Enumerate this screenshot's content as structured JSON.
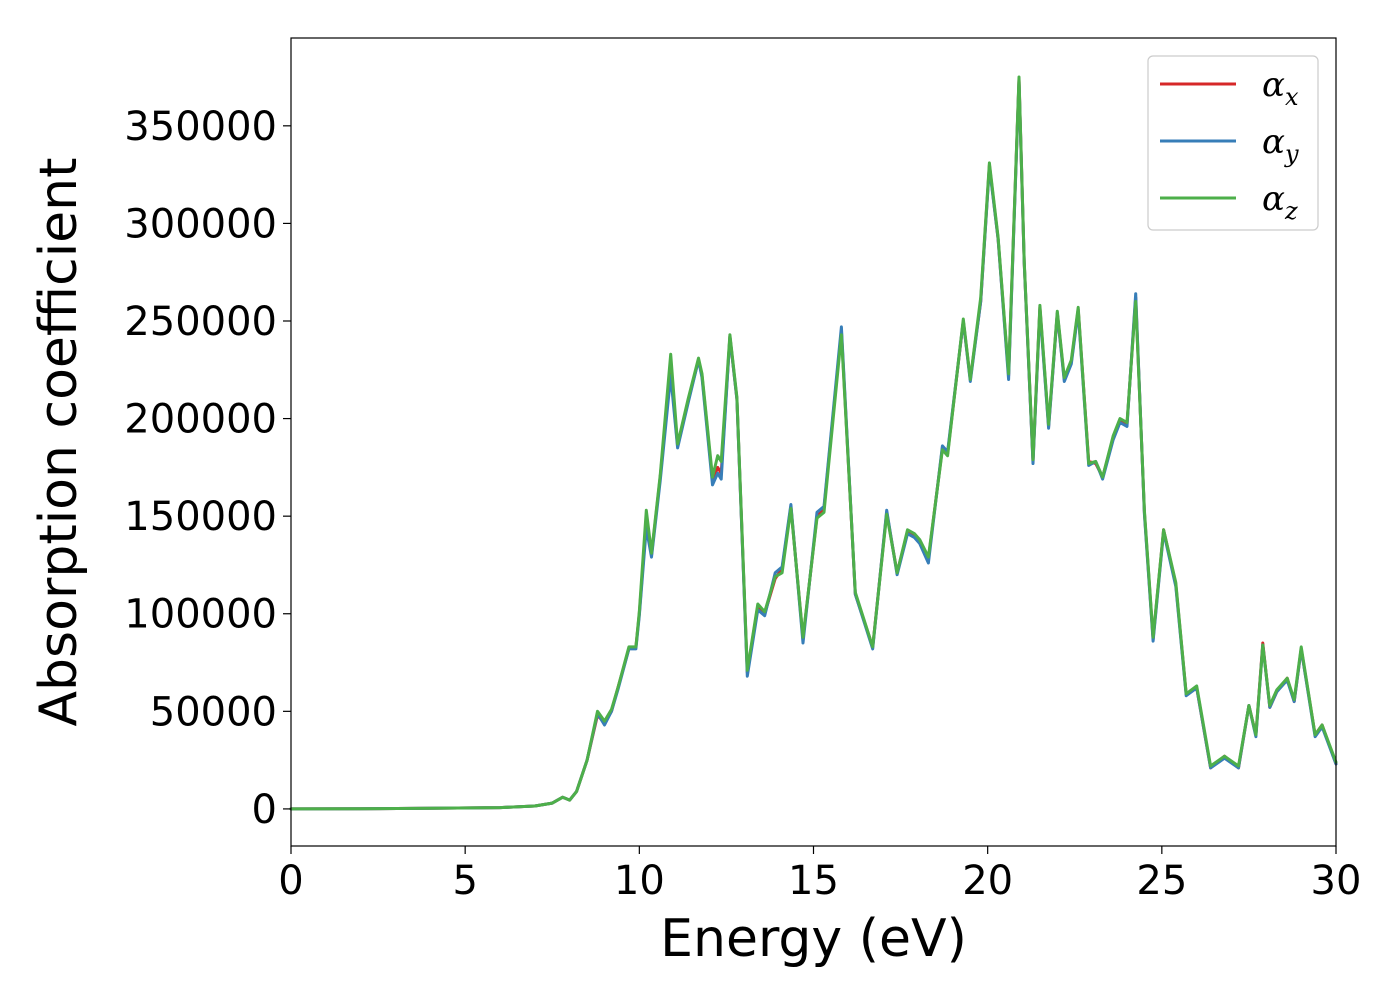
{
  "chart_data": {
    "type": "line",
    "xlabel": "Energy (eV)",
    "ylabel": "Absorption coefficient",
    "xlim": [
      0,
      30
    ],
    "ylim": [
      -19000,
      395000
    ],
    "xticks": [
      0,
      5,
      10,
      15,
      20,
      25,
      30
    ],
    "xtick_labels": [
      "0",
      "5",
      "10",
      "15",
      "20",
      "25",
      "30"
    ],
    "yticks": [
      0,
      50000,
      100000,
      150000,
      200000,
      250000,
      300000,
      350000
    ],
    "ytick_labels": [
      "0",
      "50000",
      "100000",
      "150000",
      "200000",
      "250000",
      "300000",
      "350000"
    ],
    "grid": false,
    "legend_position": "top-right",
    "series": [
      {
        "name": "α",
        "sub": "x",
        "color": "#d62728",
        "x": [
          0,
          2,
          4,
          6,
          7,
          7.5,
          7.8,
          8,
          8.2,
          8.5,
          8.8,
          9,
          9.2,
          9.4,
          9.7,
          9.9,
          10,
          10.2,
          10.35,
          10.6,
          10.9,
          11.1,
          11.4,
          11.7,
          11.8,
          12.1,
          12.25,
          12.35,
          12.6,
          12.8,
          13.1,
          13.4,
          13.6,
          13.9,
          14.1,
          14.35,
          14.7,
          15.1,
          15.3,
          15.8,
          16.2,
          16.7,
          17.1,
          17.4,
          17.7,
          17.9,
          18.05,
          18.3,
          18.7,
          18.85,
          19.3,
          19.5,
          19.8,
          20.05,
          20.3,
          20.6,
          20.9,
          21.05,
          21.3,
          21.5,
          21.75,
          22,
          22.2,
          22.4,
          22.6,
          22.9,
          23.1,
          23.3,
          23.6,
          23.8,
          24,
          24.25,
          24.5,
          24.75,
          25.05,
          25.4,
          25.7,
          26,
          26.4,
          26.8,
          27.2,
          27.5,
          27.7,
          27.9,
          28.1,
          28.3,
          28.6,
          28.8,
          29,
          29.4,
          29.6,
          30
        ],
        "y": [
          0,
          100,
          300,
          700,
          1500,
          3000,
          6000,
          4500,
          9000,
          25000,
          48000,
          44000,
          50000,
          63000,
          82000,
          83000,
          100000,
          147000,
          130000,
          170000,
          225000,
          186000,
          209000,
          230000,
          222000,
          168000,
          175000,
          172000,
          242000,
          210000,
          70000,
          104000,
          100000,
          118000,
          123000,
          155000,
          87000,
          150000,
          154000,
          245000,
          110000,
          83000,
          152000,
          121000,
          142000,
          140000,
          137000,
          128000,
          185000,
          182000,
          250000,
          220000,
          260000,
          330000,
          292000,
          222000,
          374000,
          280000,
          178000,
          257000,
          196000,
          254000,
          220000,
          229000,
          256000,
          178000,
          177000,
          170000,
          190000,
          199000,
          197000,
          262000,
          152000,
          87000,
          143000,
          115000,
          59000,
          62000,
          21000,
          27000,
          21000,
          53000,
          38000,
          85000,
          52000,
          60000,
          67000,
          55000,
          82000,
          38000,
          43000,
          23000
        ]
      },
      {
        "name": "α",
        "sub": "y",
        "color": "#377eb8",
        "x": [
          0,
          2,
          4,
          6,
          7,
          7.5,
          7.8,
          8,
          8.2,
          8.5,
          8.8,
          9,
          9.2,
          9.4,
          9.7,
          9.9,
          10,
          10.2,
          10.35,
          10.6,
          10.9,
          11.1,
          11.4,
          11.7,
          11.8,
          12.1,
          12.25,
          12.35,
          12.6,
          12.8,
          13.1,
          13.4,
          13.6,
          13.9,
          14.1,
          14.35,
          14.7,
          15.1,
          15.3,
          15.8,
          16.2,
          16.7,
          17.1,
          17.4,
          17.7,
          17.9,
          18.05,
          18.3,
          18.7,
          18.85,
          19.3,
          19.5,
          19.8,
          20.05,
          20.3,
          20.6,
          20.9,
          21.05,
          21.3,
          21.5,
          21.75,
          22,
          22.2,
          22.4,
          22.6,
          22.9,
          23.1,
          23.3,
          23.6,
          23.8,
          24,
          24.25,
          24.5,
          24.75,
          25.05,
          25.4,
          25.7,
          26,
          26.4,
          26.8,
          27.2,
          27.5,
          27.7,
          27.9,
          28.1,
          28.3,
          28.6,
          28.8,
          29,
          29.4,
          29.6,
          30
        ],
        "y": [
          0,
          100,
          300,
          700,
          1500,
          3000,
          6000,
          4500,
          9000,
          25000,
          49000,
          43000,
          50000,
          62000,
          82000,
          82000,
          99000,
          144000,
          129000,
          168000,
          222000,
          185000,
          208000,
          230000,
          221000,
          166000,
          172000,
          169000,
          242000,
          210000,
          68000,
          102000,
          99000,
          121000,
          124000,
          156000,
          85000,
          152000,
          155000,
          247000,
          110000,
          82000,
          153000,
          120000,
          141000,
          139000,
          136000,
          126000,
          186000,
          183000,
          250000,
          219000,
          260000,
          329000,
          292000,
          220000,
          373000,
          280000,
          177000,
          256000,
          195000,
          254000,
          219000,
          228000,
          255000,
          176000,
          178000,
          169000,
          189000,
          198000,
          196000,
          264000,
          151000,
          86000,
          142000,
          114000,
          58000,
          62000,
          21000,
          26000,
          21000,
          53000,
          37000,
          84000,
          52000,
          60000,
          66000,
          55000,
          82000,
          37000,
          42000,
          23000
        ]
      },
      {
        "name": "α",
        "sub": "z",
        "color": "#4daf4a",
        "x": [
          0,
          2,
          4,
          6,
          7,
          7.5,
          7.8,
          8,
          8.2,
          8.5,
          8.8,
          9,
          9.2,
          9.4,
          9.7,
          9.9,
          10,
          10.2,
          10.35,
          10.6,
          10.9,
          11.1,
          11.4,
          11.7,
          11.8,
          12.1,
          12.25,
          12.35,
          12.6,
          12.8,
          13.1,
          13.4,
          13.6,
          13.9,
          14.1,
          14.35,
          14.7,
          15.1,
          15.3,
          15.8,
          16.2,
          16.7,
          17.1,
          17.4,
          17.7,
          17.9,
          18.05,
          18.3,
          18.7,
          18.85,
          19.3,
          19.5,
          19.8,
          20.05,
          20.3,
          20.6,
          20.9,
          21.05,
          21.3,
          21.5,
          21.75,
          22,
          22.2,
          22.4,
          22.6,
          22.9,
          23.1,
          23.3,
          23.6,
          23.8,
          24,
          24.25,
          24.5,
          24.75,
          25.05,
          25.4,
          25.7,
          26,
          26.4,
          26.8,
          27.2,
          27.5,
          27.7,
          27.9,
          28.1,
          28.3,
          28.6,
          28.8,
          29,
          29.4,
          29.6,
          30
        ],
        "y": [
          0,
          100,
          300,
          700,
          1500,
          3000,
          6000,
          4500,
          9000,
          25000,
          50000,
          45000,
          51000,
          63000,
          83000,
          83000,
          101000,
          153000,
          131000,
          171000,
          233000,
          187000,
          210000,
          231000,
          223000,
          170000,
          181000,
          178000,
          243000,
          211000,
          71000,
          105000,
          101000,
          119000,
          121000,
          154000,
          88000,
          149000,
          152000,
          243000,
          111000,
          83000,
          151000,
          121000,
          143000,
          141000,
          138000,
          129000,
          184000,
          181000,
          251000,
          220000,
          262000,
          331000,
          293000,
          223000,
          375000,
          281000,
          179000,
          258000,
          197000,
          255000,
          221000,
          230000,
          257000,
          177000,
          178000,
          170000,
          191000,
          200000,
          198000,
          260000,
          153000,
          88000,
          143000,
          116000,
          59000,
          63000,
          22000,
          27000,
          22000,
          53000,
          38000,
          84000,
          53000,
          61000,
          67000,
          56000,
          83000,
          38000,
          43000,
          24000
        ]
      }
    ]
  }
}
